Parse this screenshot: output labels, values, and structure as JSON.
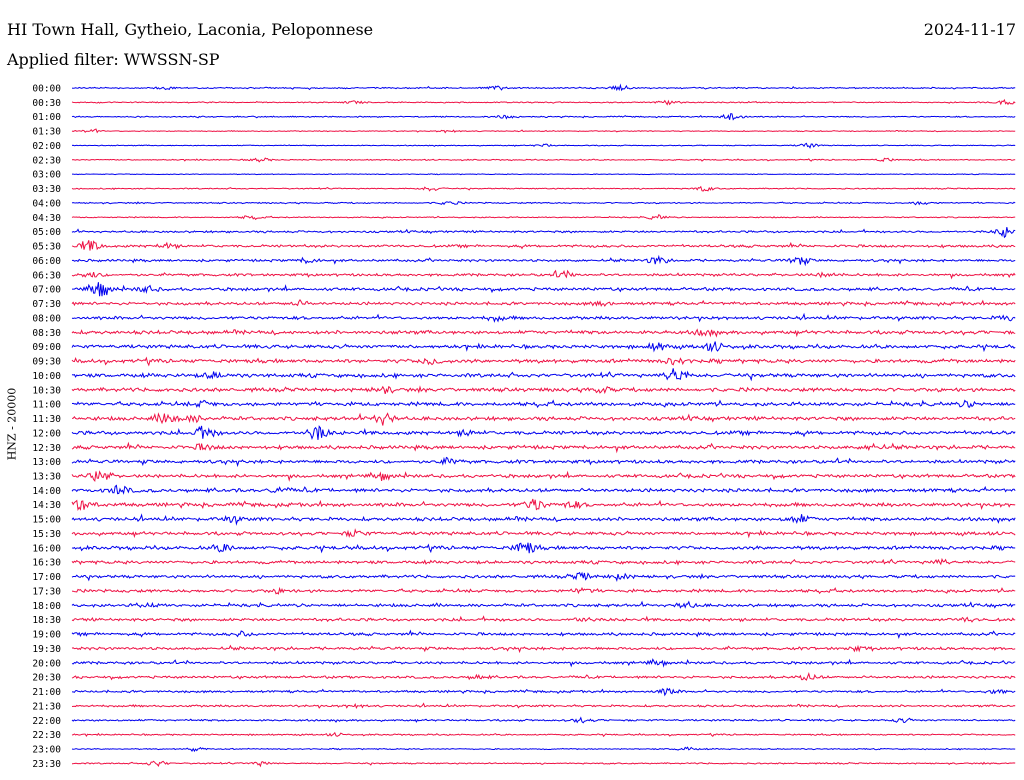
{
  "header": {
    "station": "HI Town Hall, Gytheio, Laconia, Peloponnese",
    "date": "2024-11-17",
    "filter": "Applied filter: WWSSN-SP"
  },
  "axis": {
    "ylabel": "HNZ - 20000"
  },
  "colors": {
    "blue": "#0000ee",
    "red": "#ee1144"
  },
  "chart_data": {
    "type": "line",
    "title": "HI Town Hall, Gytheio, Laconia, Peloponnese",
    "subtitle": "Applied filter: WWSSN-SP",
    "ylabel": "HNZ - 20000",
    "xlabel": "",
    "grid": false,
    "legend": "none",
    "row_colors_alternate": [
      "blue",
      "red"
    ],
    "rows": [
      {
        "time": "00:00",
        "noise": 0.18,
        "events": [
          [
            0.58,
            0.6
          ],
          [
            0.45,
            0.4
          ],
          [
            0.1,
            0.3
          ]
        ]
      },
      {
        "time": "00:30",
        "noise": 0.15,
        "events": [
          [
            0.63,
            0.5
          ],
          [
            0.99,
            0.6
          ],
          [
            0.3,
            0.3
          ]
        ]
      },
      {
        "time": "01:00",
        "noise": 0.16,
        "events": [
          [
            0.7,
            1.0
          ],
          [
            0.46,
            0.4
          ]
        ]
      },
      {
        "time": "01:30",
        "noise": 0.12,
        "events": [
          [
            0.02,
            0.4
          ],
          [
            0.4,
            0.3
          ]
        ]
      },
      {
        "time": "02:00",
        "noise": 0.12,
        "events": [
          [
            0.5,
            0.3
          ],
          [
            0.78,
            0.5
          ]
        ]
      },
      {
        "time": "02:30",
        "noise": 0.15,
        "events": [
          [
            0.2,
            0.4
          ],
          [
            0.86,
            0.4
          ]
        ]
      },
      {
        "time": "03:00",
        "noise": 0.1,
        "events": []
      },
      {
        "time": "03:30",
        "noise": 0.15,
        "events": [
          [
            0.38,
            0.5
          ],
          [
            0.67,
            0.5
          ]
        ]
      },
      {
        "time": "04:00",
        "noise": 0.18,
        "events": [
          [
            0.4,
            0.4
          ],
          [
            0.9,
            0.4
          ]
        ]
      },
      {
        "time": "04:30",
        "noise": 0.15,
        "events": [
          [
            0.19,
            0.4
          ],
          [
            0.62,
            0.5
          ]
        ]
      },
      {
        "time": "05:00",
        "noise": 0.28,
        "events": [
          [
            0.99,
            1.2
          ]
        ]
      },
      {
        "time": "05:30",
        "noise": 0.35,
        "events": [
          [
            0.02,
            1.3
          ],
          [
            0.1,
            0.5
          ]
        ]
      },
      {
        "time": "06:00",
        "noise": 0.33,
        "events": [
          [
            0.62,
            0.8
          ],
          [
            0.77,
            0.9
          ],
          [
            0.25,
            0.5
          ]
        ]
      },
      {
        "time": "06:30",
        "noise": 0.35,
        "events": [
          [
            0.02,
            0.6
          ],
          [
            0.52,
            0.7
          ],
          [
            0.8,
            0.5
          ]
        ]
      },
      {
        "time": "07:00",
        "noise": 0.42,
        "events": [
          [
            0.03,
            1.8
          ],
          [
            0.08,
            0.6
          ]
        ]
      },
      {
        "time": "07:30",
        "noise": 0.4,
        "events": [
          [
            0.24,
            0.5
          ],
          [
            0.56,
            0.4
          ]
        ]
      },
      {
        "time": "08:00",
        "noise": 0.42,
        "events": [
          [
            0.45,
            0.5
          ],
          [
            0.99,
            0.5
          ]
        ]
      },
      {
        "time": "08:30",
        "noise": 0.48,
        "events": [
          [
            0.67,
            0.6
          ]
        ]
      },
      {
        "time": "09:00",
        "noise": 0.48,
        "events": [
          [
            0.62,
            0.8
          ],
          [
            0.68,
            0.9
          ]
        ]
      },
      {
        "time": "09:30",
        "noise": 0.5,
        "events": [
          [
            0.38,
            0.7
          ],
          [
            0.64,
            0.7
          ]
        ]
      },
      {
        "time": "10:00",
        "noise": 0.5,
        "events": [
          [
            0.64,
            1.8
          ],
          [
            0.15,
            0.6
          ]
        ]
      },
      {
        "time": "10:30",
        "noise": 0.5,
        "events": [
          [
            0.33,
            0.6
          ],
          [
            0.56,
            0.6
          ]
        ]
      },
      {
        "time": "11:00",
        "noise": 0.5,
        "events": [
          [
            0.14,
            0.5
          ],
          [
            0.95,
            0.5
          ]
        ]
      },
      {
        "time": "11:30",
        "noise": 0.5,
        "events": [
          [
            0.1,
            1.4
          ],
          [
            0.33,
            1.3
          ],
          [
            0.13,
            0.6
          ]
        ]
      },
      {
        "time": "12:00",
        "noise": 0.5,
        "events": [
          [
            0.14,
            1.6
          ],
          [
            0.26,
            1.6
          ],
          [
            0.42,
            0.5
          ]
        ]
      },
      {
        "time": "12:30",
        "noise": 0.48,
        "events": [
          [
            0.14,
            0.6
          ],
          [
            0.85,
            0.6
          ]
        ]
      },
      {
        "time": "13:00",
        "noise": 0.45,
        "events": [
          [
            0.4,
            0.6
          ]
        ]
      },
      {
        "time": "13:30",
        "noise": 0.45,
        "events": [
          [
            0.03,
            1.3
          ],
          [
            0.33,
            0.6
          ]
        ]
      },
      {
        "time": "14:00",
        "noise": 0.48,
        "events": [
          [
            0.05,
            1.0
          ],
          [
            0.22,
            0.5
          ]
        ]
      },
      {
        "time": "14:30",
        "noise": 0.5,
        "events": [
          [
            0.01,
            1.3
          ],
          [
            0.49,
            1.3
          ],
          [
            0.53,
            0.6
          ]
        ]
      },
      {
        "time": "15:00",
        "noise": 0.48,
        "events": [
          [
            0.77,
            0.9
          ],
          [
            0.17,
            0.5
          ]
        ]
      },
      {
        "time": "15:30",
        "noise": 0.45,
        "events": [
          [
            0.3,
            0.6
          ]
        ]
      },
      {
        "time": "16:00",
        "noise": 0.48,
        "events": [
          [
            0.48,
            1.5
          ],
          [
            0.16,
            0.7
          ]
        ]
      },
      {
        "time": "16:30",
        "noise": 0.42,
        "events": [
          [
            0.92,
            0.5
          ]
        ]
      },
      {
        "time": "17:00",
        "noise": 0.4,
        "events": [
          [
            0.54,
            0.7
          ],
          [
            0.58,
            0.6
          ]
        ]
      },
      {
        "time": "17:30",
        "noise": 0.4,
        "events": [
          [
            0.54,
            0.5
          ],
          [
            0.22,
            0.4
          ]
        ]
      },
      {
        "time": "18:00",
        "noise": 0.4,
        "events": [
          [
            0.65,
            0.6
          ],
          [
            0.08,
            0.4
          ]
        ]
      },
      {
        "time": "18:30",
        "noise": 0.4,
        "events": [
          [
            0.54,
            0.5
          ],
          [
            0.95,
            0.4
          ]
        ]
      },
      {
        "time": "19:00",
        "noise": 0.38,
        "events": [
          [
            0.18,
            0.5
          ]
        ]
      },
      {
        "time": "19:30",
        "noise": 0.38,
        "events": [
          [
            0.83,
            0.4
          ]
        ]
      },
      {
        "time": "20:00",
        "noise": 0.35,
        "events": [
          [
            0.62,
            0.4
          ]
        ]
      },
      {
        "time": "20:30",
        "noise": 0.33,
        "events": [
          [
            0.78,
            0.7
          ],
          [
            0.43,
            0.4
          ]
        ]
      },
      {
        "time": "21:00",
        "noise": 0.3,
        "events": [
          [
            0.63,
            0.6
          ],
          [
            0.98,
            0.5
          ]
        ]
      },
      {
        "time": "21:30",
        "noise": 0.28,
        "events": [
          [
            0.3,
            0.4
          ]
        ]
      },
      {
        "time": "22:00",
        "noise": 0.25,
        "events": [
          [
            0.54,
            0.5
          ],
          [
            0.88,
            0.4
          ]
        ]
      },
      {
        "time": "22:30",
        "noise": 0.2,
        "events": [
          [
            0.28,
            0.3
          ]
        ]
      },
      {
        "time": "23:00",
        "noise": 0.15,
        "events": [
          [
            0.13,
            0.4
          ],
          [
            0.65,
            0.4
          ]
        ]
      },
      {
        "time": "23:30",
        "noise": 0.18,
        "events": [
          [
            0.09,
            0.6
          ],
          [
            0.2,
            0.5
          ]
        ]
      }
    ]
  }
}
